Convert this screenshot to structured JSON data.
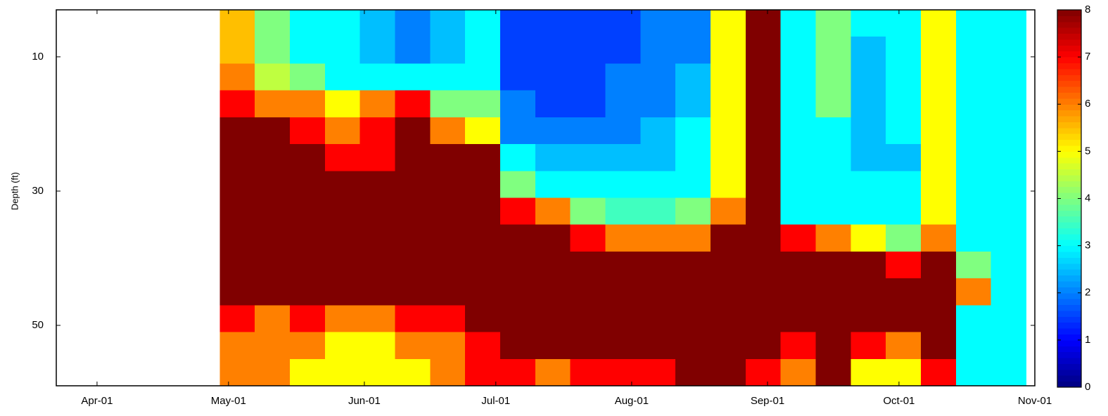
{
  "chart_data": {
    "type": "heatmap",
    "y_label": "Depth (ft)",
    "colormap": "jet",
    "xlim": [
      -9.3,
      214
    ],
    "xticks": [
      {
        "value": 0,
        "label": "Apr-01"
      },
      {
        "value": 30,
        "label": "May-01"
      },
      {
        "value": 61,
        "label": "Jun-01"
      },
      {
        "value": 91,
        "label": "Jul-01"
      },
      {
        "value": 122,
        "label": "Aug-01"
      },
      {
        "value": 153,
        "label": "Sep-01"
      },
      {
        "value": 183,
        "label": "Oct-01"
      },
      {
        "value": 214,
        "label": "Nov-01"
      }
    ],
    "ylim": [
      59,
      3
    ],
    "yticks": [
      10,
      30,
      50
    ],
    "clim": [
      0,
      8
    ],
    "cticks": [
      0,
      1,
      2,
      3,
      4,
      5,
      6,
      7,
      8
    ],
    "x": [
      32,
      40,
      48,
      56,
      64,
      72,
      80,
      88,
      96,
      104,
      112,
      120,
      128,
      136,
      144,
      152,
      160,
      168,
      176,
      184,
      192,
      200,
      208
    ],
    "y": [
      5,
      9,
      13,
      17,
      21,
      25,
      29,
      33,
      37,
      41,
      45,
      49,
      53,
      57
    ],
    "z": [
      [
        5.5,
        5.5,
        6,
        7,
        8,
        8,
        8,
        8,
        8,
        8,
        8,
        7,
        6,
        6
      ],
      [
        4,
        4,
        4.5,
        6,
        8,
        8,
        8,
        8,
        8,
        8,
        8,
        6,
        6,
        6
      ],
      [
        3,
        3,
        4,
        6,
        7,
        8,
        8,
        8,
        8,
        8,
        8,
        7,
        6,
        5
      ],
      [
        3,
        3,
        3,
        5,
        6,
        7,
        8,
        8,
        8,
        8,
        8,
        6,
        5,
        5
      ],
      [
        2.5,
        2.5,
        3,
        6,
        7,
        7,
        8,
        8,
        8,
        8,
        8,
        6,
        5,
        5
      ],
      [
        2,
        2,
        3,
        7,
        8,
        8,
        8,
        8,
        8,
        8,
        8,
        7,
        6,
        5
      ],
      [
        2.5,
        2.5,
        3,
        4,
        6,
        8,
        8,
        8,
        8,
        8,
        8,
        7,
        6,
        6
      ],
      [
        3,
        3,
        3,
        4,
        5,
        8,
        8,
        8,
        8,
        8,
        8,
        8,
        7,
        7
      ],
      [
        1.5,
        1.5,
        1.5,
        2,
        2,
        3,
        4,
        7,
        8,
        8,
        8,
        8,
        8,
        7
      ],
      [
        1.5,
        1.5,
        1.5,
        1.5,
        2,
        2.5,
        3,
        6,
        8,
        8,
        8,
        8,
        8,
        6
      ],
      [
        1.5,
        1.5,
        1.5,
        1.5,
        2,
        2.5,
        3,
        4,
        7,
        8,
        8,
        8,
        8,
        7
      ],
      [
        1.5,
        1.5,
        2,
        2,
        2,
        2.5,
        3,
        3.5,
        6,
        8,
        8,
        8,
        8,
        7
      ],
      [
        2,
        2,
        2,
        2,
        2.5,
        2.5,
        3,
        3.5,
        6,
        8,
        8,
        8,
        8,
        7
      ],
      [
        2,
        2,
        2.5,
        2.5,
        3,
        3,
        3,
        4,
        6,
        8,
        8,
        8,
        8,
        8
      ],
      [
        5,
        5,
        5,
        5,
        5,
        5,
        5,
        6,
        8,
        8,
        8,
        8,
        8,
        8
      ],
      [
        8,
        8,
        8,
        8,
        8,
        8,
        8,
        8,
        8,
        8,
        8,
        8,
        8,
        7
      ],
      [
        3,
        3,
        3,
        3,
        3,
        3,
        3,
        3,
        7,
        8,
        8,
        8,
        7,
        6
      ],
      [
        4,
        4,
        4,
        4,
        3,
        3,
        3,
        3,
        6,
        8,
        8,
        8,
        8,
        8
      ],
      [
        3,
        2.5,
        2.5,
        2.5,
        2.5,
        2.5,
        3,
        3,
        5,
        8,
        8,
        8,
        7,
        5
      ],
      [
        3,
        3,
        3,
        3,
        3,
        2.5,
        3,
        3,
        4,
        7,
        8,
        8,
        6,
        5
      ],
      [
        5,
        5,
        5,
        5,
        5,
        5,
        5,
        5,
        6,
        8,
        8,
        8,
        8,
        7
      ],
      [
        3,
        3,
        3,
        3,
        3,
        3,
        3,
        3,
        3,
        4,
        6,
        3,
        3,
        3
      ],
      [
        3,
        3,
        3,
        3,
        3,
        3,
        3,
        3,
        3,
        3,
        3,
        3,
        3,
        3
      ]
    ]
  }
}
